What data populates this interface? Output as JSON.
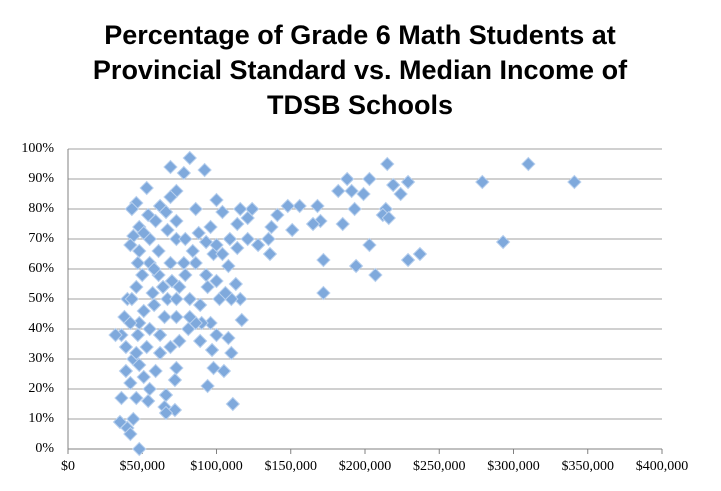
{
  "chart_data": {
    "type": "scatter",
    "title": "Percentage of Grade 6 Math Students at Provincial Standard vs. Median Income of TDSB Schools",
    "color": "#7fa9dc",
    "x": [
      310000,
      279000,
      341000,
      293000,
      237000,
      229000,
      207000,
      194000,
      172000,
      172000,
      215000,
      188000,
      203000,
      229000,
      219000,
      224000,
      199000,
      182000,
      191000,
      193000,
      214000,
      212000,
      216000,
      185000,
      203000,
      168000,
      170000,
      165000,
      156000,
      148000,
      141000,
      137000,
      151000,
      135000,
      136000,
      128000,
      124000,
      121000,
      116000,
      114000,
      121000,
      114000,
      109000,
      108000,
      113000,
      116000,
      110000,
      117000,
      108000,
      110000,
      111000,
      105000,
      98000,
      94000,
      97000,
      100000,
      96000,
      90000,
      102000,
      106000,
      100000,
      93000,
      98000,
      93000,
      100000,
      104000,
      100000,
      96000,
      86000,
      92000,
      82000,
      78000,
      69000,
      73000,
      69000,
      62000,
      66000,
      59000,
      54000,
      53000,
      46000,
      43000,
      48000,
      44000,
      42000,
      48000,
      55000,
      61000,
      69000,
      73000,
      79000,
      84000,
      86000,
      79000,
      75000,
      82000,
      89000,
      86000,
      81000,
      73000,
      67000,
      64000,
      61000,
      55000,
      50000,
      46000,
      40000,
      38000,
      36000,
      32000,
      39000,
      44000,
      39000,
      42000,
      46000,
      36000,
      35000,
      40000,
      42000,
      44000,
      48000,
      54000,
      55000,
      51000,
      59000,
      65000,
      66000,
      72000,
      66000,
      73000,
      72000,
      62000,
      69000,
      75000,
      62000,
      55000,
      51000,
      58000,
      65000,
      53000,
      47000,
      48000,
      43000,
      57000,
      70000,
      78000,
      73000,
      67000,
      51000,
      58000,
      47000,
      42000,
      46000,
      48000,
      73000,
      82000,
      89000,
      88000,
      94000,
      104000
    ],
    "values": [
      95,
      89,
      89,
      69,
      65,
      63,
      58,
      61,
      52,
      63,
      95,
      90,
      90,
      89,
      88,
      85,
      85,
      86,
      86,
      80,
      80,
      78,
      77,
      75,
      68,
      81,
      76,
      75,
      81,
      81,
      78,
      74,
      73,
      70,
      65,
      68,
      80,
      77,
      80,
      75,
      70,
      67,
      70,
      61,
      55,
      50,
      50,
      43,
      37,
      32,
      15,
      26,
      27,
      21,
      33,
      38,
      42,
      42,
      50,
      52,
      56,
      58,
      65,
      69,
      68,
      79,
      83,
      74,
      80,
      93,
      97,
      92,
      94,
      86,
      84,
      81,
      79,
      76,
      78,
      87,
      82,
      80,
      74,
      71,
      68,
      66,
      70,
      66,
      62,
      70,
      70,
      66,
      62,
      58,
      54,
      50,
      48,
      42,
      40,
      44,
      50,
      54,
      58,
      62,
      58,
      54,
      50,
      44,
      38,
      38,
      34,
      30,
      26,
      22,
      17,
      17,
      9,
      7,
      5,
      10,
      0,
      16,
      20,
      24,
      26,
      14,
      18,
      13,
      12,
      27,
      23,
      32,
      34,
      36,
      38,
      40,
      46,
      48,
      44,
      34,
      38,
      42,
      50,
      52,
      56,
      62,
      76,
      73,
      72,
      60,
      62,
      42,
      32,
      28,
      50,
      44,
      36,
      72,
      54,
      65
    ],
    "xlim": [
      0,
      400000
    ],
    "xticks": [
      {
        "value": 0,
        "label": "$0"
      },
      {
        "value": 50000,
        "label": "$50,000"
      },
      {
        "value": 100000,
        "label": "$100,000"
      },
      {
        "value": 150000,
        "label": "$150,000"
      },
      {
        "value": 200000,
        "label": "$200,000"
      },
      {
        "value": 250000,
        "label": "$250,000"
      },
      {
        "value": 300000,
        "label": "$300,000"
      },
      {
        "value": 350000,
        "label": "$350,000"
      },
      {
        "value": 400000,
        "label": "$400,000"
      }
    ],
    "ylim": [
      0,
      100
    ],
    "yticks": [
      {
        "value": 0,
        "label": "0%"
      },
      {
        "value": 10,
        "label": "10%"
      },
      {
        "value": 20,
        "label": "20%"
      },
      {
        "value": 30,
        "label": "30%"
      },
      {
        "value": 40,
        "label": "40%"
      },
      {
        "value": 50,
        "label": "50%"
      },
      {
        "value": 60,
        "label": "60%"
      },
      {
        "value": 70,
        "label": "70%"
      },
      {
        "value": 80,
        "label": "80%"
      },
      {
        "value": 90,
        "label": "90%"
      },
      {
        "value": 100,
        "label": "100%"
      }
    ],
    "grid": true
  }
}
